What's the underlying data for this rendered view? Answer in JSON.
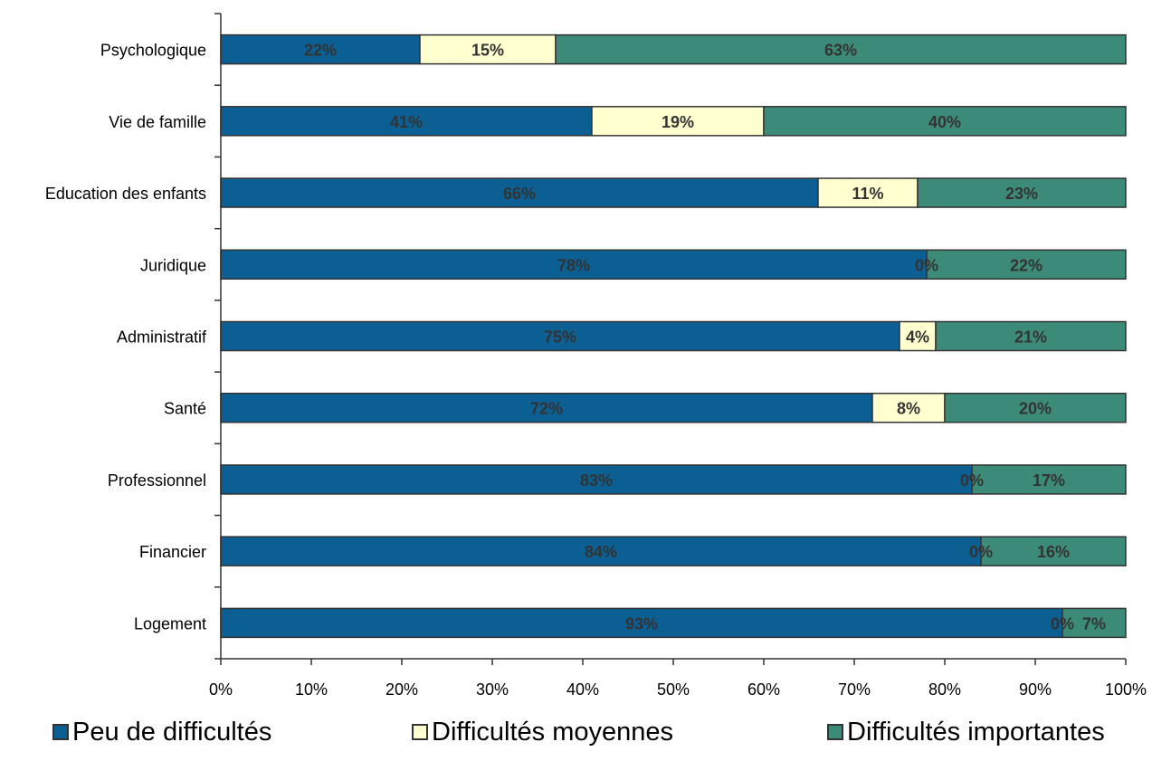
{
  "chart_data": {
    "type": "bar",
    "orientation": "horizontal",
    "stacked": true,
    "percent": true,
    "categories": [
      "Psychologique",
      "Vie de famille",
      "Education des enfants",
      "Juridique",
      "Administratif",
      "Santé",
      "Professionnel",
      "Financier",
      "Logement"
    ],
    "series": [
      {
        "name": "Peu de difficultés",
        "color": "#0B5F92",
        "values": [
          22,
          41,
          66,
          78,
          75,
          72,
          83,
          84,
          93
        ]
      },
      {
        "name": "Difficultés moyennes",
        "color": "#FFFFD0",
        "values": [
          15,
          19,
          11,
          0,
          4,
          8,
          0,
          0,
          0
        ]
      },
      {
        "name": "Difficultés importantes",
        "color": "#3C8A78",
        "values": [
          63,
          40,
          23,
          22,
          21,
          20,
          17,
          16,
          7
        ]
      }
    ],
    "x_ticks": [
      "0%",
      "10%",
      "20%",
      "30%",
      "40%",
      "50%",
      "60%",
      "70%",
      "80%",
      "90%",
      "100%"
    ],
    "xlim": [
      0,
      100
    ],
    "grid": false,
    "legend_position": "bottom"
  }
}
